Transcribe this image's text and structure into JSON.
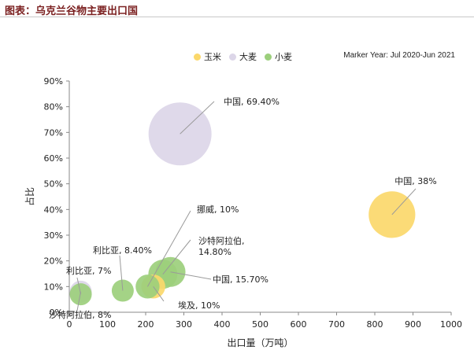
{
  "title": "图表：乌克兰谷物主要出口国",
  "marker_year": "Marker Year: Jul 2020-Jun 2021",
  "legend": [
    {
      "label": "玉米",
      "color": "#fbd86b"
    },
    {
      "label": "大麦",
      "color": "#dcd6e8"
    },
    {
      "label": "小麦",
      "color": "#9ccf7c"
    }
  ],
  "chart_data": {
    "type": "bubble",
    "xlabel": "出口量（万吨）",
    "ylabel": "占比",
    "xlim": [
      0,
      1000
    ],
    "ylim": [
      0,
      0.9
    ],
    "x_ticks": [
      "0",
      "100",
      "200",
      "300",
      "400",
      "500",
      "600",
      "700",
      "800",
      "900",
      "1000"
    ],
    "y_ticks": [
      "0%",
      "10%",
      "20%",
      "30%",
      "40%",
      "50%",
      "60%",
      "70%",
      "80%",
      "90%"
    ],
    "series": [
      {
        "name": "玉米",
        "color": "#fbd86b",
        "points": [
          {
            "x": 845,
            "y": 0.38,
            "label": "中国, 38%"
          },
          {
            "x": 220,
            "y": 0.1,
            "label": "埃及, 10%"
          }
        ]
      },
      {
        "name": "大麦",
        "color": "#dcd6e8",
        "points": [
          {
            "x": 290,
            "y": 0.694,
            "label": "中国, 69.40%"
          },
          {
            "x": 30,
            "y": 0.08,
            "label": "沙特阿拉伯, 8%"
          }
        ]
      },
      {
        "name": "小麦",
        "color": "#9ccf7c",
        "points": [
          {
            "x": 245,
            "y": 0.148,
            "label": "沙特阿拉伯,\n14.80%"
          },
          {
            "x": 265,
            "y": 0.157,
            "label": "中国, 15.70%"
          },
          {
            "x": 205,
            "y": 0.1,
            "label": "挪威, 10%"
          },
          {
            "x": 140,
            "y": 0.084,
            "label": "利比亚, 8.40%"
          },
          {
            "x": 30,
            "y": 0.07,
            "label": "利比亚, 7%"
          }
        ]
      }
    ]
  }
}
